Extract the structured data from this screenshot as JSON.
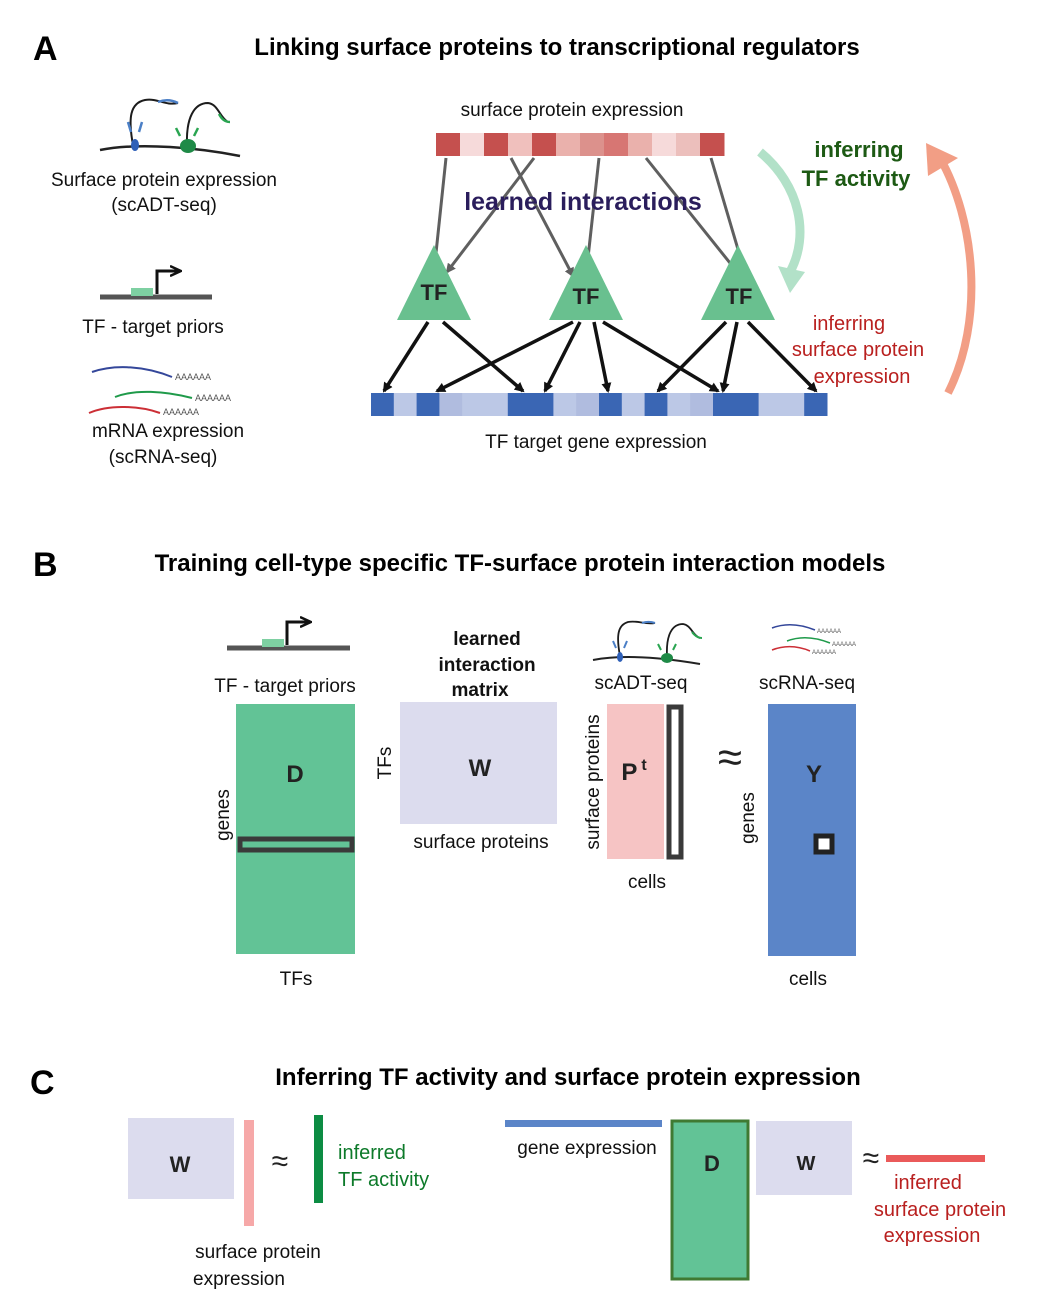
{
  "panelA": {
    "letter": "A",
    "title": "Linking surface proteins to transcriptional regulators",
    "legend_adt": [
      "Surface protein expression",
      "(scADT-seq)"
    ],
    "legend_priors": "TF - target priors",
    "legend_mrna": [
      "mRNA expression",
      "(scRNA-seq)"
    ],
    "polyA": "AAAAAA",
    "surface_label": "surface protein expression",
    "learned_label": "learned interactions",
    "tf_label": "TF",
    "target_label": "TF target gene expression",
    "infer_tf": [
      "inferring",
      "TF activity"
    ],
    "infer_sp": [
      "inferring",
      "surface protein",
      "expression"
    ],
    "colors": {
      "surface_cells": [
        "#c5504e",
        "#f6dada",
        "#c5504e",
        "#f0c0bd",
        "#c5504e",
        "#eab1ac",
        "#dc918c",
        "#d77673",
        "#eab1ac",
        "#f6dada",
        "#ecbfbc",
        "#c5504e"
      ],
      "target_cells": [
        "#3a66b4",
        "#bcc8e6",
        "#3a66b4",
        "#b0bcdf",
        "#bcc8e6",
        "#bcc8e6",
        "#3a66b4",
        "#3a66b4",
        "#bcc8e6",
        "#b0bcdf",
        "#3a66b4",
        "#bcc8e6",
        "#3a66b4",
        "#bcc8e6",
        "#b0bcdf",
        "#3a66b4",
        "#3a66b4",
        "#bcc8e6",
        "#bcc8e6",
        "#3a66b4"
      ]
    }
  },
  "panelB": {
    "letter": "B",
    "title": "Training cell-type specific TF-surface protein interaction models",
    "priors_label": "TF - target priors",
    "matrix_label": [
      "learned",
      "interaction",
      "matrix"
    ],
    "adt_label": "scADT-seq",
    "rna_label": "scRNA-seq",
    "polyA": "AAAAAA",
    "D": "D",
    "genes": "genes",
    "TFs_bottom": "TFs",
    "TFs_side": "TFs",
    "W": "W",
    "surface_proteins_bottom": "surface proteins",
    "surface_proteins_side": "surface proteins",
    "P": "P",
    "P_sup": "t",
    "cells_p": "cells",
    "approx": "≈",
    "Y": "Y",
    "genes_y": "genes",
    "cells_y": "cells"
  },
  "panelC": {
    "letter": "C",
    "title": "Inferring TF activity and surface protein expression",
    "W1": "W",
    "approx1": "≈",
    "inferred_tf": [
      "inferred",
      "TF activity"
    ],
    "surface_expr": [
      "surface protein",
      "expression"
    ],
    "gene_expr": "gene expression",
    "D": "D",
    "W2": "W",
    "approx2": "≈",
    "inferred_sp": [
      "inferred",
      "surface protein",
      "expression"
    ]
  },
  "colors": {
    "tf_green": "#69c08f",
    "matrix_green": "#62c396",
    "lavender": "#dcdcee",
    "pink": "#f6c4c4",
    "blue": "#5b85c8",
    "dark_green_text": "#1d5a14",
    "red_text": "#b9201f",
    "learned_text": "#2a1d5c",
    "salmon": "#f29e85",
    "mint": "#b2e1c8"
  }
}
